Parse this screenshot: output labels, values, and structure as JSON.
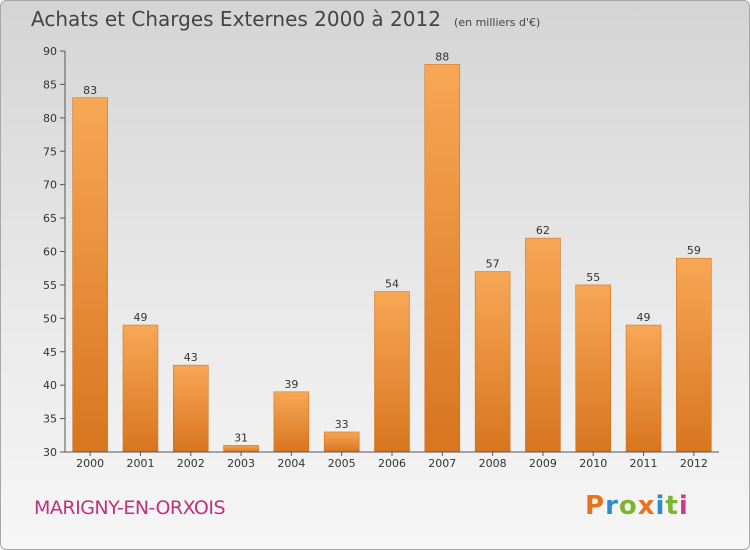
{
  "header": {
    "title": "Achats et Charges Externes 2000 à 2012",
    "subtitle": "(en milliers d'€)"
  },
  "footer": {
    "commune": "MARIGNY-EN-ORXOIS",
    "brand": "Proxiti",
    "brand_colors": [
      "#e9731c",
      "#2f8bd1",
      "#7bb52f",
      "#e9731c",
      "#2f8bd1",
      "#7bb52f",
      "#d03a84"
    ]
  },
  "colors": {
    "bar_top": "#f7a755",
    "bar_bottom": "#d8751f",
    "axis": "#555555",
    "commune": "#c0327a"
  },
  "chart_data": {
    "type": "bar",
    "title": "Achats et Charges Externes 2000 à 2012",
    "subtitle": "(en milliers d'€)",
    "categories": [
      "2000",
      "2001",
      "2002",
      "2003",
      "2004",
      "2005",
      "2006",
      "2007",
      "2008",
      "2009",
      "2010",
      "2011",
      "2012"
    ],
    "values": [
      83,
      49,
      43,
      31,
      39,
      33,
      54,
      88,
      57,
      62,
      55,
      49,
      59
    ],
    "ylim": [
      30,
      90
    ],
    "yticks": [
      30,
      35,
      40,
      45,
      50,
      55,
      60,
      65,
      70,
      75,
      80,
      85,
      90
    ],
    "xlabel": "",
    "ylabel": "",
    "grid": false,
    "legend": "none"
  }
}
